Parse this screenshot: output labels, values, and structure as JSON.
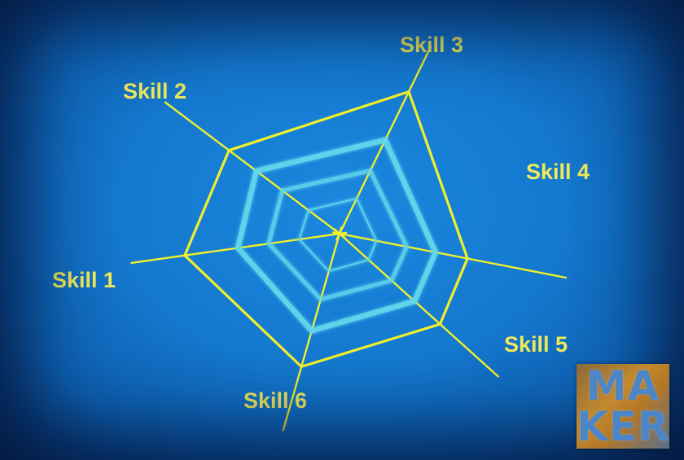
{
  "chart_data": {
    "type": "radar",
    "categories": [
      "Skill 1",
      "Skill 2",
      "Skill 3",
      "Skill 4",
      "Skill 5",
      "Skill 6"
    ],
    "series": [
      {
        "values": [
          96,
          85,
          97,
          80,
          83,
          85
        ]
      },
      {
        "values": [
          63,
          64,
          64,
          60,
          62,
          62
        ]
      },
      {
        "values": [
          44,
          44,
          43,
          42,
          43,
          42
        ]
      },
      {
        "values": [
          25,
          24,
          24,
          23,
          24,
          24
        ]
      }
    ],
    "rmax": 100
  },
  "colors": {
    "axis": "#f2f02a",
    "outer_series": "#f2f02a",
    "inner_series": "#62d8ec",
    "label": "#f0ea5a"
  },
  "logo": {
    "row1": "MA",
    "row2": "KER"
  }
}
